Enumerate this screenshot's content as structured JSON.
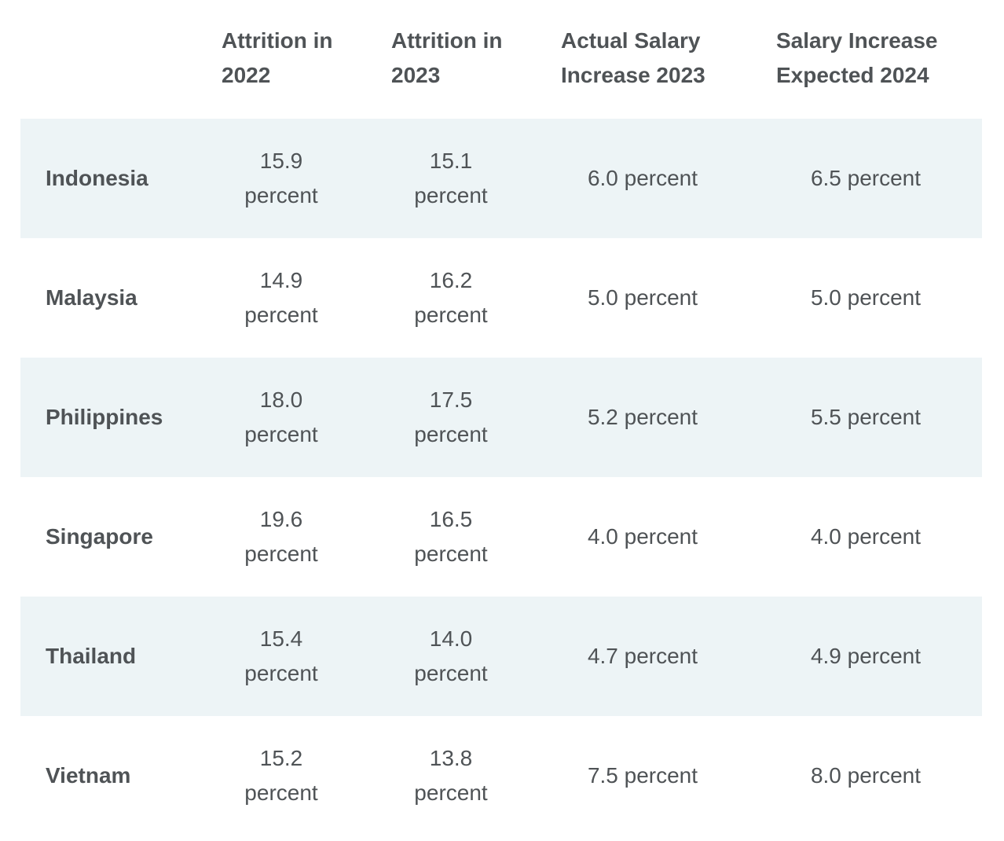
{
  "headers": {
    "country": "",
    "attrition_2022": [
      "Attrition in",
      "2022"
    ],
    "attrition_2023": [
      "Attrition in",
      "2023"
    ],
    "salary_increase_2023": [
      "Actual Salary",
      "Increase 2023"
    ],
    "salary_expected_2024": [
      "Salary Increase",
      "Expected 2024"
    ]
  },
  "rows": [
    {
      "country": "Indonesia",
      "attrition_2022": [
        "15.9",
        "percent"
      ],
      "attrition_2023": [
        "15.1",
        "percent"
      ],
      "salary_increase_2023": "6.0 percent",
      "salary_expected_2024": "6.5 percent"
    },
    {
      "country": "Malaysia",
      "attrition_2022": [
        "14.9",
        "percent"
      ],
      "attrition_2023": [
        "16.2",
        "percent"
      ],
      "salary_increase_2023": "5.0 percent",
      "salary_expected_2024": "5.0 percent"
    },
    {
      "country": "Philippines",
      "attrition_2022": [
        "18.0",
        "percent"
      ],
      "attrition_2023": [
        "17.5",
        "percent"
      ],
      "salary_increase_2023": "5.2 percent",
      "salary_expected_2024": "5.5 percent"
    },
    {
      "country": "Singapore",
      "attrition_2022": [
        "19.6",
        "percent"
      ],
      "attrition_2023": [
        "16.5",
        "percent"
      ],
      "salary_increase_2023": "4.0 percent",
      "salary_expected_2024": "4.0 percent"
    },
    {
      "country": "Thailand",
      "attrition_2022": [
        "15.4",
        "percent"
      ],
      "attrition_2023": [
        "14.0",
        "percent"
      ],
      "salary_increase_2023": "4.7 percent",
      "salary_expected_2024": "4.9 percent"
    },
    {
      "country": "Vietnam",
      "attrition_2022": [
        "15.2",
        "percent"
      ],
      "attrition_2023": [
        "13.8",
        "percent"
      ],
      "salary_increase_2023": "7.5 percent",
      "salary_expected_2024": "8.0 percent"
    }
  ],
  "colors": {
    "text": "#4f5356",
    "row_shade": "#edf4f6",
    "background": "#ffffff"
  }
}
